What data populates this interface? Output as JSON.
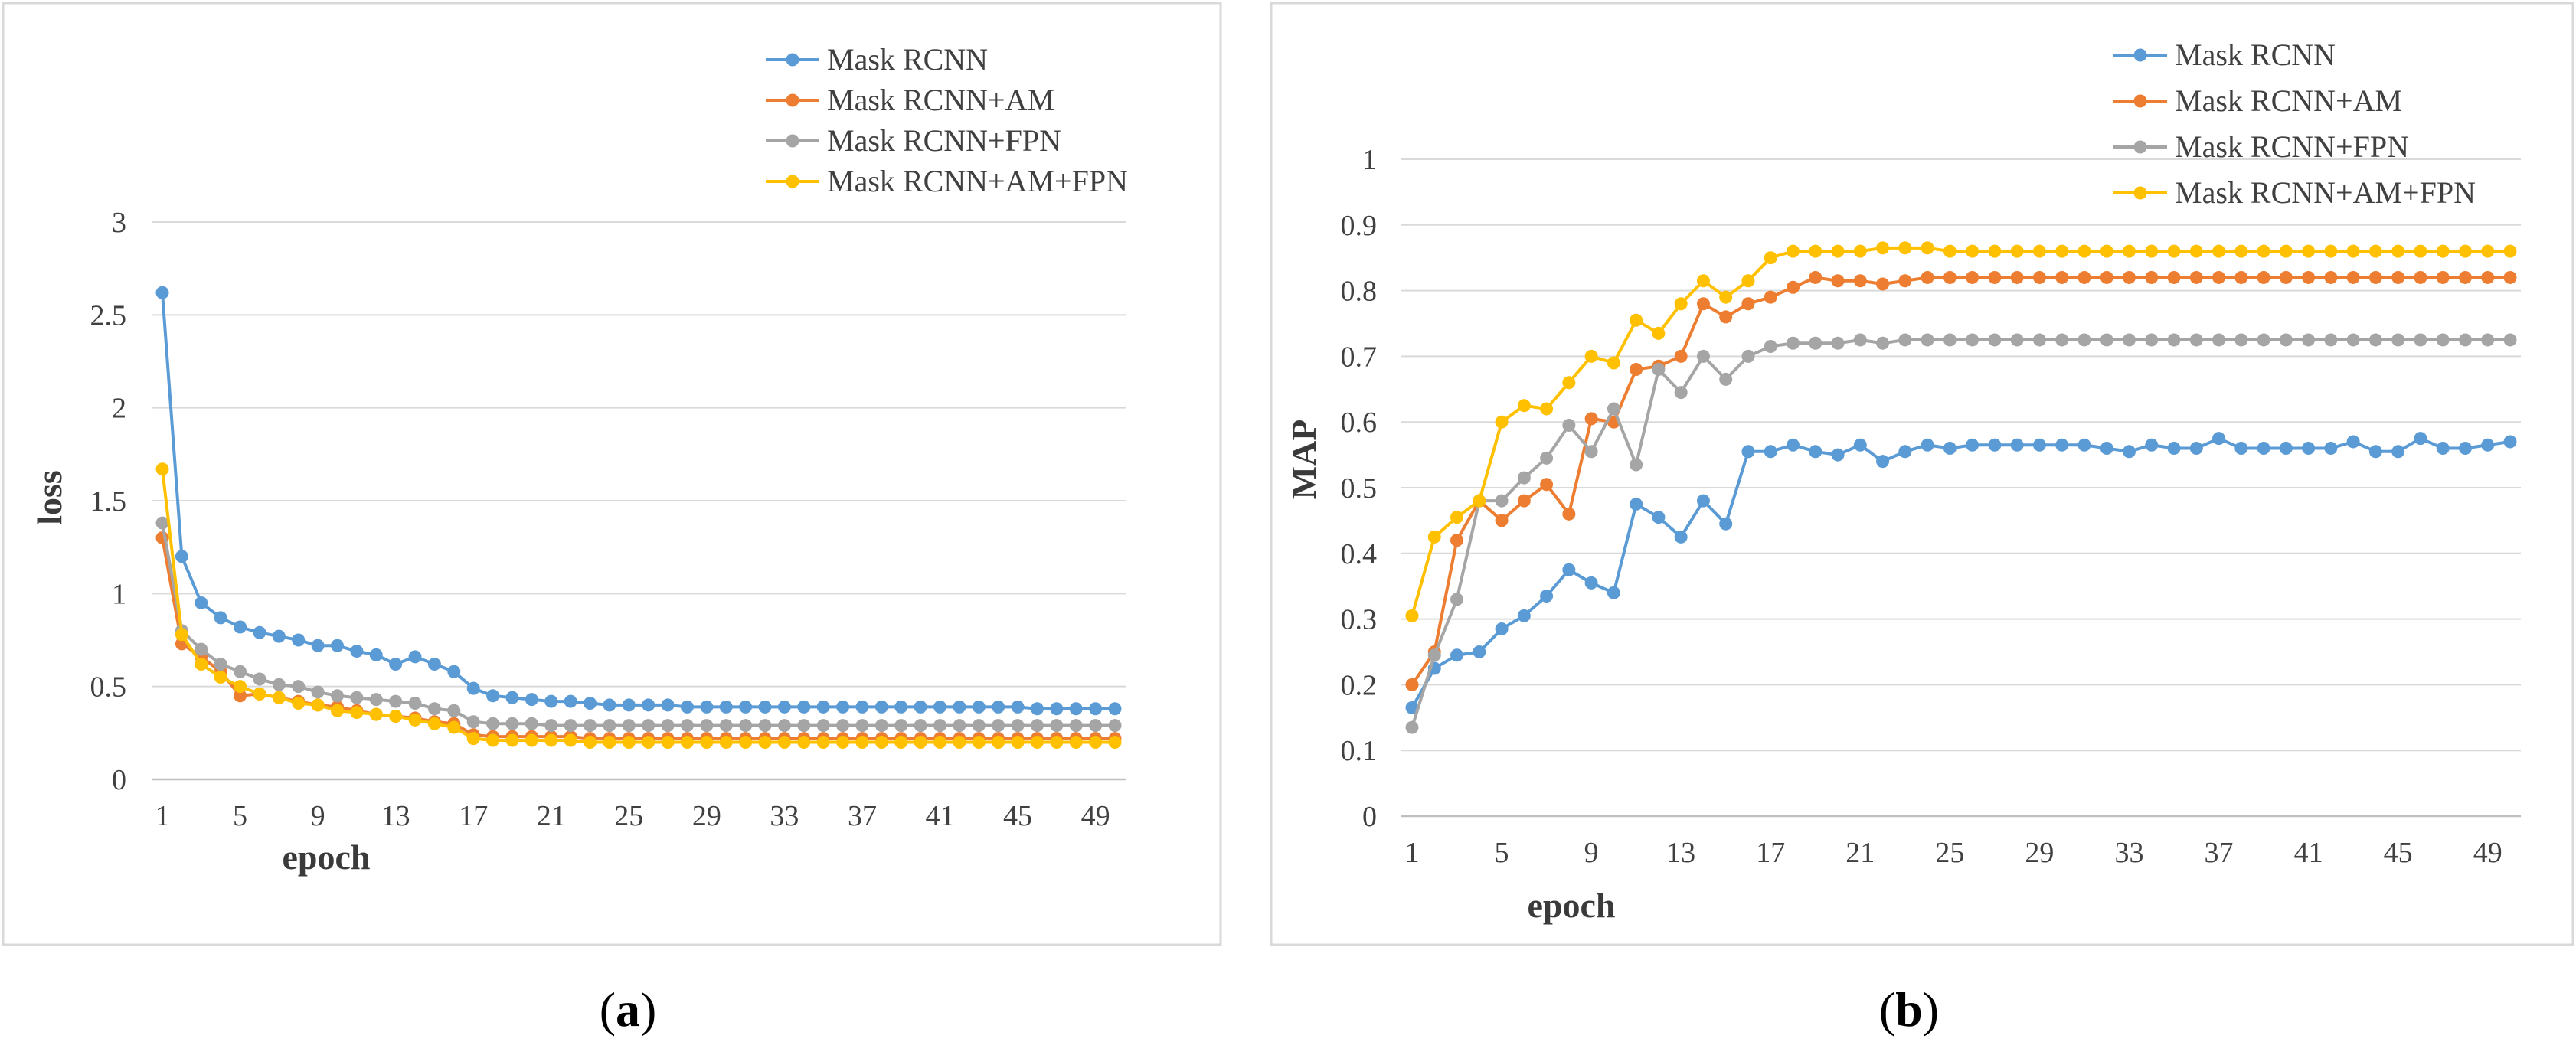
{
  "colors": {
    "mask_rcnn": "#5B9BD5",
    "am": "#ED7D31",
    "fpn": "#A5A5A5",
    "am_fpn": "#FFC000",
    "grid": "#d9d9d9",
    "axis": "#bfbfbf",
    "frame": "#d9d9d9"
  },
  "captions": [
    {
      "open": "(",
      "letter": "a",
      "close": ")"
    },
    {
      "open": "(",
      "letter": "b",
      "close": ")"
    }
  ],
  "chart_data": [
    {
      "type": "line",
      "title": "",
      "xlabel": "epoch",
      "ylabel": "loss",
      "ylim": [
        0,
        3
      ],
      "yticks": [
        "0",
        "0.5",
        "1",
        "1.5",
        "2",
        "2.5",
        "3"
      ],
      "x": [
        1,
        2,
        3,
        4,
        5,
        6,
        7,
        8,
        9,
        10,
        11,
        12,
        13,
        14,
        15,
        16,
        17,
        18,
        19,
        20,
        21,
        22,
        23,
        24,
        25,
        26,
        27,
        28,
        29,
        30,
        31,
        32,
        33,
        34,
        35,
        36,
        37,
        38,
        39,
        40,
        41,
        42,
        43,
        44,
        45,
        46,
        47,
        48,
        49,
        50
      ],
      "xtick_labels": [
        "1",
        "5",
        "9",
        "13",
        "17",
        "21",
        "25",
        "29",
        "33",
        "37",
        "41",
        "45",
        "49"
      ],
      "legend_position": "top-right",
      "series": [
        {
          "name": "Mask RCNN",
          "color_key": "mask_rcnn",
          "values": [
            2.62,
            1.2,
            0.95,
            0.87,
            0.82,
            0.79,
            0.77,
            0.75,
            0.72,
            0.72,
            0.69,
            0.67,
            0.62,
            0.66,
            0.62,
            0.58,
            0.49,
            0.45,
            0.44,
            0.43,
            0.42,
            0.42,
            0.41,
            0.4,
            0.4,
            0.4,
            0.4,
            0.39,
            0.39,
            0.39,
            0.39,
            0.39,
            0.39,
            0.39,
            0.39,
            0.39,
            0.39,
            0.39,
            0.39,
            0.39,
            0.39,
            0.39,
            0.39,
            0.39,
            0.39,
            0.38,
            0.38,
            0.38,
            0.38,
            0.38
          ]
        },
        {
          "name": "Mask RCNN+AM",
          "color_key": "am",
          "values": [
            1.3,
            0.73,
            0.66,
            0.58,
            0.45,
            0.46,
            0.44,
            0.42,
            0.4,
            0.39,
            0.37,
            0.35,
            0.34,
            0.33,
            0.31,
            0.3,
            0.24,
            0.23,
            0.23,
            0.23,
            0.23,
            0.23,
            0.22,
            0.22,
            0.22,
            0.22,
            0.22,
            0.22,
            0.22,
            0.22,
            0.22,
            0.22,
            0.22,
            0.22,
            0.22,
            0.22,
            0.22,
            0.22,
            0.22,
            0.22,
            0.22,
            0.22,
            0.22,
            0.22,
            0.22,
            0.22,
            0.22,
            0.22,
            0.22,
            0.22
          ]
        },
        {
          "name": "Mask RCNN+FPN",
          "color_key": "fpn",
          "values": [
            1.38,
            0.8,
            0.7,
            0.62,
            0.58,
            0.54,
            0.51,
            0.5,
            0.47,
            0.45,
            0.44,
            0.43,
            0.42,
            0.41,
            0.38,
            0.37,
            0.31,
            0.3,
            0.3,
            0.3,
            0.29,
            0.29,
            0.29,
            0.29,
            0.29,
            0.29,
            0.29,
            0.29,
            0.29,
            0.29,
            0.29,
            0.29,
            0.29,
            0.29,
            0.29,
            0.29,
            0.29,
            0.29,
            0.29,
            0.29,
            0.29,
            0.29,
            0.29,
            0.29,
            0.29,
            0.29,
            0.29,
            0.29,
            0.29,
            0.29
          ]
        },
        {
          "name": "Mask RCNN+AM+FPN",
          "color_key": "am_fpn",
          "values": [
            1.67,
            0.78,
            0.62,
            0.55,
            0.5,
            0.46,
            0.44,
            0.41,
            0.4,
            0.37,
            0.36,
            0.35,
            0.34,
            0.32,
            0.3,
            0.28,
            0.22,
            0.21,
            0.21,
            0.21,
            0.21,
            0.21,
            0.2,
            0.2,
            0.2,
            0.2,
            0.2,
            0.2,
            0.2,
            0.2,
            0.2,
            0.2,
            0.2,
            0.2,
            0.2,
            0.2,
            0.2,
            0.2,
            0.2,
            0.2,
            0.2,
            0.2,
            0.2,
            0.2,
            0.2,
            0.2,
            0.2,
            0.2,
            0.2,
            0.2
          ]
        }
      ]
    },
    {
      "type": "line",
      "title": "",
      "xlabel": "epoch",
      "ylabel": "MAP",
      "ylim": [
        0,
        1
      ],
      "yticks": [
        "0",
        "0.1",
        "0.2",
        "0.3",
        "0.4",
        "0.5",
        "0.6",
        "0.7",
        "0.8",
        "0.9",
        "1"
      ],
      "x": [
        1,
        2,
        3,
        4,
        5,
        6,
        7,
        8,
        9,
        10,
        11,
        12,
        13,
        14,
        15,
        16,
        17,
        18,
        19,
        20,
        21,
        22,
        23,
        24,
        25,
        26,
        27,
        28,
        29,
        30,
        31,
        32,
        33,
        34,
        35,
        36,
        37,
        38,
        39,
        40,
        41,
        42,
        43,
        44,
        45,
        46,
        47,
        48,
        49,
        50
      ],
      "xtick_labels": [
        "1",
        "5",
        "9",
        "13",
        "17",
        "21",
        "25",
        "29",
        "33",
        "37",
        "41",
        "45",
        "49"
      ],
      "legend_position": "top-right",
      "series": [
        {
          "name": "Mask RCNN",
          "color_key": "mask_rcnn",
          "values": [
            0.165,
            0.225,
            0.245,
            0.25,
            0.285,
            0.305,
            0.335,
            0.375,
            0.355,
            0.34,
            0.475,
            0.455,
            0.425,
            0.48,
            0.445,
            0.555,
            0.555,
            0.565,
            0.555,
            0.55,
            0.565,
            0.54,
            0.555,
            0.565,
            0.56,
            0.565,
            0.565,
            0.565,
            0.565,
            0.565,
            0.565,
            0.56,
            0.555,
            0.565,
            0.56,
            0.56,
            0.575,
            0.56,
            0.56,
            0.56,
            0.56,
            0.56,
            0.57,
            0.555,
            0.555,
            0.575,
            0.56,
            0.56,
            0.565,
            0.57
          ]
        },
        {
          "name": "Mask RCNN+AM",
          "color_key": "am",
          "values": [
            0.2,
            0.25,
            0.42,
            0.48,
            0.45,
            0.48,
            0.505,
            0.46,
            0.605,
            0.6,
            0.68,
            0.685,
            0.7,
            0.78,
            0.76,
            0.78,
            0.79,
            0.805,
            0.82,
            0.815,
            0.815,
            0.81,
            0.815,
            0.82,
            0.82,
            0.82,
            0.82,
            0.82,
            0.82,
            0.82,
            0.82,
            0.82,
            0.82,
            0.82,
            0.82,
            0.82,
            0.82,
            0.82,
            0.82,
            0.82,
            0.82,
            0.82,
            0.82,
            0.82,
            0.82,
            0.82,
            0.82,
            0.82,
            0.82,
            0.82
          ]
        },
        {
          "name": "Mask RCNN+FPN",
          "color_key": "fpn",
          "values": [
            0.135,
            0.245,
            0.33,
            0.48,
            0.48,
            0.515,
            0.545,
            0.595,
            0.555,
            0.62,
            0.535,
            0.68,
            0.645,
            0.7,
            0.665,
            0.7,
            0.715,
            0.72,
            0.72,
            0.72,
            0.725,
            0.72,
            0.725,
            0.725,
            0.725,
            0.725,
            0.725,
            0.725,
            0.725,
            0.725,
            0.725,
            0.725,
            0.725,
            0.725,
            0.725,
            0.725,
            0.725,
            0.725,
            0.725,
            0.725,
            0.725,
            0.725,
            0.725,
            0.725,
            0.725,
            0.725,
            0.725,
            0.725,
            0.725,
            0.725
          ]
        },
        {
          "name": "Mask RCNN+AM+FPN",
          "color_key": "am_fpn",
          "values": [
            0.305,
            0.425,
            0.455,
            0.48,
            0.6,
            0.625,
            0.62,
            0.66,
            0.7,
            0.69,
            0.755,
            0.735,
            0.78,
            0.815,
            0.79,
            0.815,
            0.85,
            0.86,
            0.86,
            0.86,
            0.86,
            0.865,
            0.865,
            0.865,
            0.86,
            0.86,
            0.86,
            0.86,
            0.86,
            0.86,
            0.86,
            0.86,
            0.86,
            0.86,
            0.86,
            0.86,
            0.86,
            0.86,
            0.86,
            0.86,
            0.86,
            0.86,
            0.86,
            0.86,
            0.86,
            0.86,
            0.86,
            0.86,
            0.86,
            0.86
          ]
        }
      ]
    }
  ]
}
